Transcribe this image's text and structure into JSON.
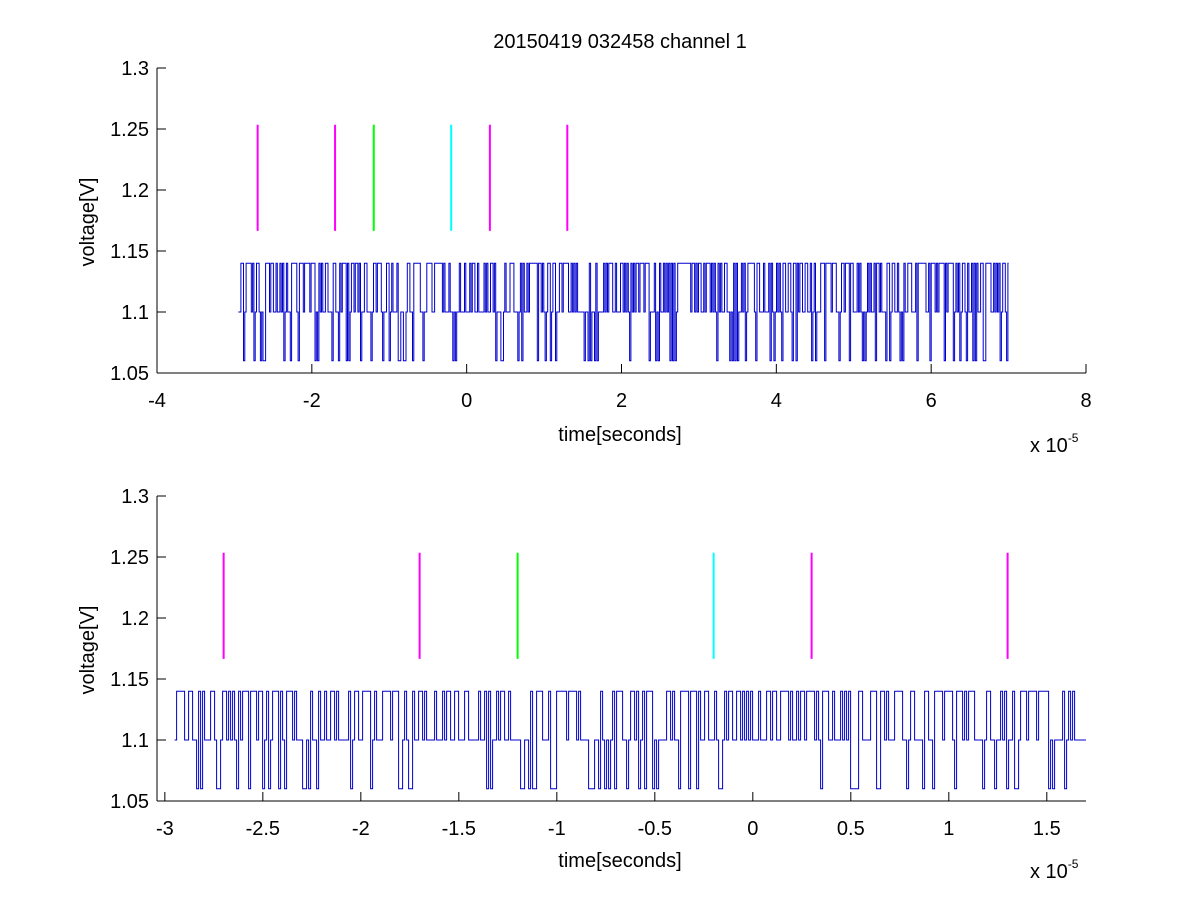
{
  "figure_title": "20150419 032458 channel 1",
  "colors": {
    "signal": "#0000cc",
    "magenta": "#ff00ff",
    "green": "#00ff00",
    "cyan": "#00ffff",
    "axes": "#000000",
    "background": "#ffffff"
  },
  "chart_data": [
    {
      "type": "line",
      "title": "20150419 032458 channel 1",
      "xlabel": "time[seconds]",
      "ylabel": "voltage[V]",
      "x_multiplier_label": "x 10",
      "x_multiplier_exponent": "-5",
      "xlim": [
        -4,
        8
      ],
      "ylim": [
        1.05,
        1.3
      ],
      "x_unit_scale": "1e-5",
      "xticks": [
        -4,
        -2,
        0,
        2,
        4,
        6,
        8
      ],
      "xtick_labels": [
        "-4",
        "-2",
        "0",
        "2",
        "4",
        "6",
        "8"
      ],
      "yticks": [
        1.05,
        1.1,
        1.15,
        1.2,
        1.25,
        1.3
      ],
      "ytick_labels": [
        "1.05",
        "1.1",
        "1.15",
        "1.2",
        "1.25",
        "1.3"
      ],
      "grid": false,
      "series": [
        {
          "kind": "noisy-trace",
          "x_range": [
            -2.95,
            7.0
          ],
          "levels": [
            1.06,
            1.1,
            1.14
          ],
          "baseline": 1.1,
          "color": "#0000cc"
        }
      ],
      "markers": [
        {
          "x": -2.7,
          "y_range": [
            1.1665,
            1.2535
          ],
          "color": "#ff00ff"
        },
        {
          "x": -1.7,
          "y_range": [
            1.1665,
            1.2535
          ],
          "color": "#ff00ff"
        },
        {
          "x": -1.2,
          "y_range": [
            1.1665,
            1.2535
          ],
          "color": "#00ff00"
        },
        {
          "x": -0.2,
          "y_range": [
            1.1665,
            1.2535
          ],
          "color": "#00ffff"
        },
        {
          "x": 0.3,
          "y_range": [
            1.1665,
            1.2535
          ],
          "color": "#ff00ff"
        },
        {
          "x": 1.3,
          "y_range": [
            1.1665,
            1.2535
          ],
          "color": "#ff00ff"
        }
      ]
    },
    {
      "type": "line",
      "title": "",
      "xlabel": "time[seconds]",
      "ylabel": "voltage[V]",
      "x_multiplier_label": "x 10",
      "x_multiplier_exponent": "-5",
      "xlim": [
        -3.04,
        1.7
      ],
      "ylim": [
        1.05,
        1.3
      ],
      "x_unit_scale": "1e-5",
      "xticks": [
        -3,
        -2.5,
        -2,
        -1.5,
        -1,
        -0.5,
        0,
        0.5,
        1,
        1.5
      ],
      "xtick_labels": [
        "-3",
        "-2.5",
        "-2",
        "-1.5",
        "-1",
        "-0.5",
        "0",
        "0.5",
        "1",
        "1.5"
      ],
      "yticks": [
        1.05,
        1.1,
        1.15,
        1.2,
        1.25,
        1.3
      ],
      "ytick_labels": [
        "1.05",
        "1.1",
        "1.15",
        "1.2",
        "1.25",
        "1.3"
      ],
      "grid": false,
      "series": [
        {
          "kind": "noisy-trace",
          "x_range": [
            -2.95,
            1.7
          ],
          "levels": [
            1.06,
            1.1,
            1.14
          ],
          "baseline": 1.1,
          "color": "#0000cc"
        }
      ],
      "markers": [
        {
          "x": -2.7,
          "y_range": [
            1.1665,
            1.2535
          ],
          "color": "#ff00ff"
        },
        {
          "x": -1.7,
          "y_range": [
            1.1665,
            1.2535
          ],
          "color": "#ff00ff"
        },
        {
          "x": -1.2,
          "y_range": [
            1.1665,
            1.2535
          ],
          "color": "#00ff00"
        },
        {
          "x": -0.2,
          "y_range": [
            1.1665,
            1.2535
          ],
          "color": "#00ffff"
        },
        {
          "x": 0.3,
          "y_range": [
            1.1665,
            1.2535
          ],
          "color": "#ff00ff"
        },
        {
          "x": 1.3,
          "y_range": [
            1.1665,
            1.2535
          ],
          "color": "#ff00ff"
        }
      ]
    }
  ]
}
